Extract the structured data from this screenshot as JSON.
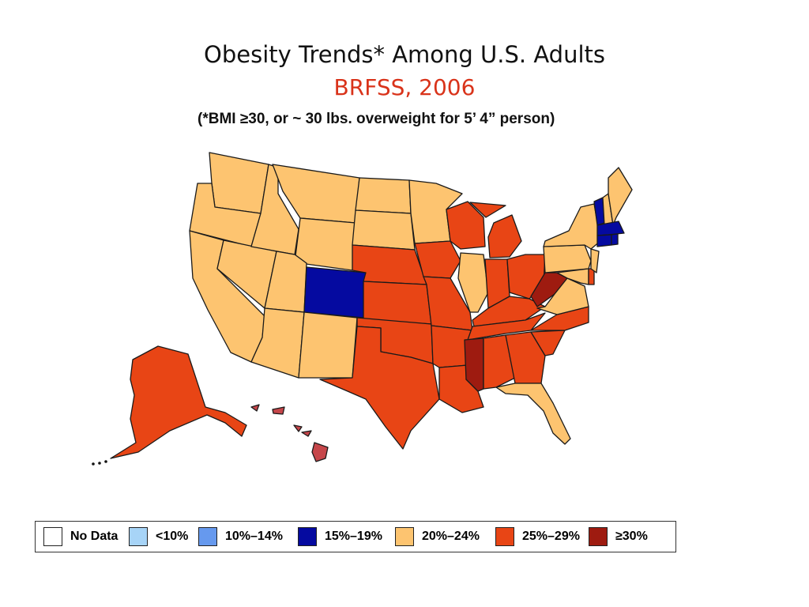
{
  "title": "Obesity Trends* Among U.S. Adults",
  "subtitle": "BRFSS, 2006",
  "note": "(*BMI ≥30, or ~ 30 lbs. overweight for 5’ 4” person)",
  "colors": {
    "no_data": "#ffffff",
    "lt10": "#a7d4f7",
    "10_14": "#6699ee",
    "15_19": "#050aa0",
    "20_24": "#fdc470",
    "25_29": "#e84515",
    "gte30": "#9e1b10",
    "hawaii": "#c6464a"
  },
  "legend": [
    {
      "label": "No Data",
      "color": "#ffffff"
    },
    {
      "label": "<10%",
      "color": "#a7d4f7"
    },
    {
      "label": "10%–14%",
      "color": "#6699ee"
    },
    {
      "label": "15%–19%",
      "color": "#050aa0"
    },
    {
      "label": "20%–24%",
      "color": "#fdc470"
    },
    {
      "label": "25%–29%",
      "color": "#e84515"
    },
    {
      "label": "≥30%",
      "color": "#9e1b10"
    }
  ],
  "states": {
    "15_19": [
      "Colorado",
      "Massachusetts",
      "Connecticut",
      "Rhode Island",
      "Vermont"
    ],
    "20_24": [
      "Washington",
      "Oregon",
      "California",
      "Nevada",
      "Idaho",
      "Montana",
      "Wyoming",
      "Utah",
      "Arizona",
      "New Mexico",
      "North Dakota",
      "South Dakota",
      "Minnesota",
      "Illinois",
      "Florida",
      "Virginia",
      "Pennsylvania",
      "New York",
      "New Jersey",
      "Maryland",
      "New Hampshire",
      "Maine"
    ],
    "25_29": [
      "Alaska",
      "Texas",
      "Oklahoma",
      "Kansas",
      "Nebraska",
      "Iowa",
      "Missouri",
      "Arkansas",
      "Louisiana",
      "Alabama",
      "Georgia",
      "South Carolina",
      "North Carolina",
      "Tennessee",
      "Kentucky",
      "Indiana",
      "Ohio",
      "Michigan",
      "Wisconsin",
      "Delaware"
    ],
    "gte30": [
      "Mississippi",
      "West Virginia"
    ],
    "hawaii_shade": [
      "Hawaii"
    ]
  }
}
